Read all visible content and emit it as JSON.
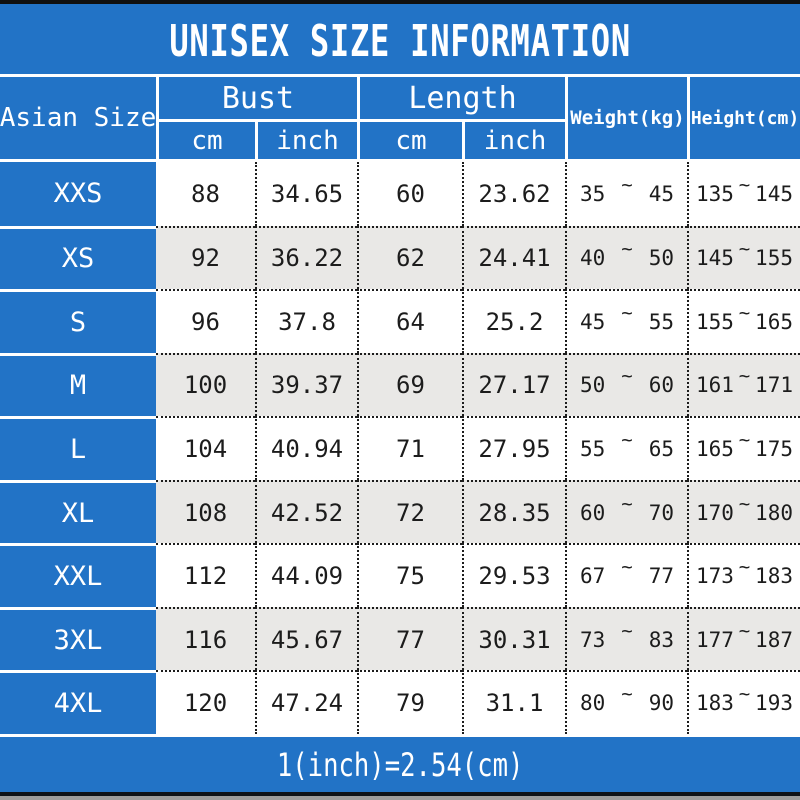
{
  "title": "UNISEX SIZE INFORMATION",
  "footer_note": "1(inch)=2.54(cm)",
  "colors": {
    "primary_blue": "#2273c6",
    "alt_row_gray": "#e9e8e6",
    "top_bar_black": "#101010",
    "bottom_strip_gray": "#9b9b9b",
    "text_dark": "#1c1c1c",
    "text_white": "#ffffff"
  },
  "table": {
    "tilde": "~",
    "header": {
      "asian_size": "Asian Size",
      "bust": "Bust",
      "length": "Length",
      "cm": "cm",
      "inch": "inch",
      "weight": "Weight(kg)",
      "height": "Height(cm)"
    },
    "rows": [
      {
        "size": "XXS",
        "bust_cm": "88",
        "bust_inch": "34.65",
        "length_cm": "60",
        "length_inch": "23.62",
        "weight_min": "35",
        "weight_max": "45",
        "height_min": "135",
        "height_max": "145"
      },
      {
        "size": "XS",
        "bust_cm": "92",
        "bust_inch": "36.22",
        "length_cm": "62",
        "length_inch": "24.41",
        "weight_min": "40",
        "weight_max": "50",
        "height_min": "145",
        "height_max": "155"
      },
      {
        "size": "S",
        "bust_cm": "96",
        "bust_inch": "37.8",
        "length_cm": "64",
        "length_inch": "25.2",
        "weight_min": "45",
        "weight_max": "55",
        "height_min": "155",
        "height_max": "165"
      },
      {
        "size": "M",
        "bust_cm": "100",
        "bust_inch": "39.37",
        "length_cm": "69",
        "length_inch": "27.17",
        "weight_min": "50",
        "weight_max": "60",
        "height_min": "161",
        "height_max": "171"
      },
      {
        "size": "L",
        "bust_cm": "104",
        "bust_inch": "40.94",
        "length_cm": "71",
        "length_inch": "27.95",
        "weight_min": "55",
        "weight_max": "65",
        "height_min": "165",
        "height_max": "175"
      },
      {
        "size": "XL",
        "bust_cm": "108",
        "bust_inch": "42.52",
        "length_cm": "72",
        "length_inch": "28.35",
        "weight_min": "60",
        "weight_max": "70",
        "height_min": "170",
        "height_max": "180"
      },
      {
        "size": "XXL",
        "bust_cm": "112",
        "bust_inch": "44.09",
        "length_cm": "75",
        "length_inch": "29.53",
        "weight_min": "67",
        "weight_max": "77",
        "height_min": "173",
        "height_max": "183"
      },
      {
        "size": "3XL",
        "bust_cm": "116",
        "bust_inch": "45.67",
        "length_cm": "77",
        "length_inch": "30.31",
        "weight_min": "73",
        "weight_max": "83",
        "height_min": "177",
        "height_max": "187"
      },
      {
        "size": "4XL",
        "bust_cm": "120",
        "bust_inch": "47.24",
        "length_cm": "79",
        "length_inch": "31.1",
        "weight_min": "80",
        "weight_max": "90",
        "height_min": "183",
        "height_max": "193"
      }
    ]
  }
}
